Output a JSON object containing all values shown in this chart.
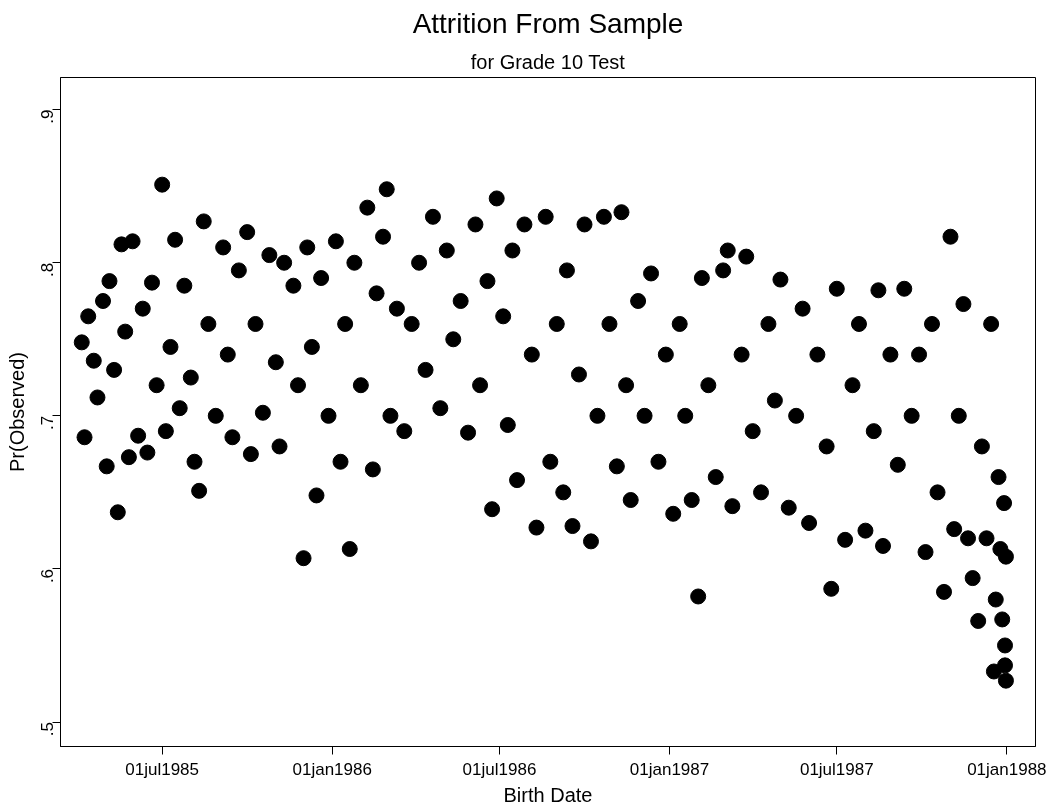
{
  "chart_data": {
    "type": "scatter",
    "title": "Attrition From Sample",
    "subtitle": "for Grade 10 Test",
    "xlabel": "Birth Date",
    "ylabel": "Pr(Observed)",
    "xlim": [
      "1985-03-13",
      "1988-02-01"
    ],
    "ylim": [
      0.484,
      0.921
    ],
    "xticks": [
      {
        "value": "1985-07-01",
        "label": "01jul1985"
      },
      {
        "value": "1986-01-01",
        "label": "01jan1986"
      },
      {
        "value": "1986-07-01",
        "label": "01jul1986"
      },
      {
        "value": "1987-01-01",
        "label": "01jan1987"
      },
      {
        "value": "1987-07-01",
        "label": "01jul1987"
      },
      {
        "value": "1988-01-01",
        "label": "01jan1988"
      }
    ],
    "yticks": [
      {
        "value": 0.5,
        "label": ".5"
      },
      {
        "value": 0.6,
        "label": ".6"
      },
      {
        "value": 0.7,
        "label": ".7"
      },
      {
        "value": 0.8,
        "label": ".8"
      },
      {
        "value": 0.9,
        "label": ".9"
      }
    ],
    "grid": false,
    "marker": "circle",
    "series": [
      {
        "color": "#000000",
        "x": [
          "1985-04-05",
          "1985-04-08",
          "1985-04-12",
          "1985-04-18",
          "1985-04-22",
          "1985-04-28",
          "1985-05-02",
          "1985-05-05",
          "1985-05-10",
          "1985-05-14",
          "1985-05-18",
          "1985-05-22",
          "1985-05-26",
          "1985-05-30",
          "1985-06-05",
          "1985-06-10",
          "1985-06-15",
          "1985-06-20",
          "1985-06-25",
          "1985-07-01",
          "1985-07-05",
          "1985-07-10",
          "1985-07-15",
          "1985-07-20",
          "1985-07-25",
          "1985-08-01",
          "1985-08-05",
          "1985-08-10",
          "1985-08-15",
          "1985-08-20",
          "1985-08-28",
          "1985-09-05",
          "1985-09-10",
          "1985-09-15",
          "1985-09-22",
          "1985-10-01",
          "1985-10-05",
          "1985-10-10",
          "1985-10-18",
          "1985-10-25",
          "1985-11-01",
          "1985-11-05",
          "1985-11-10",
          "1985-11-20",
          "1985-11-25",
          "1985-12-01",
          "1985-12-05",
          "1985-12-10",
          "1985-12-15",
          "1985-12-20",
          "1985-12-28",
          "1986-01-05",
          "1986-01-10",
          "1986-01-15",
          "1986-01-20",
          "1986-01-25",
          "1986-02-01",
          "1986-02-08",
          "1986-02-14",
          "1986-02-18",
          "1986-02-25",
          "1986-03-01",
          "1986-03-05",
          "1986-03-12",
          "1986-03-20",
          "1986-03-28",
          "1986-04-05",
          "1986-04-12",
          "1986-04-20",
          "1986-04-28",
          "1986-05-05",
          "1986-05-12",
          "1986-05-20",
          "1986-05-28",
          "1986-06-05",
          "1986-06-10",
          "1986-06-18",
          "1986-06-23",
          "1986-06-28",
          "1986-07-05",
          "1986-07-10",
          "1986-07-15",
          "1986-07-20",
          "1986-07-28",
          "1986-08-05",
          "1986-08-10",
          "1986-08-20",
          "1986-08-25",
          "1986-09-01",
          "1986-09-08",
          "1986-09-12",
          "1986-09-18",
          "1986-09-25",
          "1986-10-01",
          "1986-10-08",
          "1986-10-15",
          "1986-10-22",
          "1986-10-28",
          "1986-11-05",
          "1986-11-10",
          "1986-11-15",
          "1986-11-20",
          "1986-11-28",
          "1986-12-05",
          "1986-12-12",
          "1986-12-20",
          "1986-12-28",
          "1987-01-05",
          "1987-01-12",
          "1987-01-18",
          "1987-01-25",
          "1987-02-01",
          "1987-02-05",
          "1987-02-12",
          "1987-02-20",
          "1987-02-28",
          "1987-03-05",
          "1987-03-10",
          "1987-03-20",
          "1987-03-25",
          "1987-04-01",
          "1987-04-10",
          "1987-04-18",
          "1987-04-25",
          "1987-05-01",
          "1987-05-10",
          "1987-05-18",
          "1987-05-25",
          "1987-06-01",
          "1987-06-10",
          "1987-06-20",
          "1987-06-25",
          "1987-07-01",
          "1987-07-10",
          "1987-07-18",
          "1987-07-25",
          "1987-08-01",
          "1987-08-10",
          "1987-08-15",
          "1987-08-20",
          "1987-08-28",
          "1987-09-05",
          "1987-09-12",
          "1987-09-20",
          "1987-09-28",
          "1987-10-05",
          "1987-10-12",
          "1987-10-18",
          "1987-10-25",
          "1987-11-01",
          "1987-11-05",
          "1987-11-10",
          "1987-11-15",
          "1987-11-20",
          "1987-11-25",
          "1987-12-01",
          "1987-12-05",
          "1987-12-10",
          "1987-12-15",
          "1987-12-18",
          "1987-12-20",
          "1987-12-23",
          "1987-12-25",
          "1987-12-27",
          "1987-12-29",
          "1987-12-30",
          "1987-12-31",
          "1987-12-31",
          "1987-12-30"
        ],
        "values": [
          0.748,
          0.686,
          0.765,
          0.736,
          0.712,
          0.775,
          0.667,
          0.788,
          0.73,
          0.637,
          0.812,
          0.755,
          0.673,
          0.814,
          0.687,
          0.77,
          0.676,
          0.787,
          0.72,
          0.851,
          0.69,
          0.745,
          0.815,
          0.705,
          0.785,
          0.725,
          0.67,
          0.651,
          0.827,
          0.76,
          0.7,
          0.81,
          0.74,
          0.686,
          0.795,
          0.82,
          0.675,
          0.76,
          0.702,
          0.805,
          0.735,
          0.68,
          0.8,
          0.785,
          0.72,
          0.607,
          0.81,
          0.745,
          0.648,
          0.79,
          0.7,
          0.814,
          0.67,
          0.76,
          0.613,
          0.8,
          0.72,
          0.836,
          0.665,
          0.78,
          0.817,
          0.848,
          0.7,
          0.77,
          0.69,
          0.76,
          0.8,
          0.73,
          0.83,
          0.705,
          0.808,
          0.75,
          0.775,
          0.689,
          0.825,
          0.72,
          0.788,
          0.639,
          0.842,
          0.765,
          0.694,
          0.808,
          0.658,
          0.825,
          0.74,
          0.627,
          0.83,
          0.67,
          0.76,
          0.65,
          0.795,
          0.628,
          0.727,
          0.825,
          0.618,
          0.7,
          0.83,
          0.76,
          0.667,
          0.833,
          0.72,
          0.645,
          0.775,
          0.7,
          0.793,
          0.67,
          0.74,
          0.636,
          0.76,
          0.7,
          0.645,
          0.582,
          0.79,
          0.72,
          0.66,
          0.795,
          0.808,
          0.641,
          0.74,
          0.804,
          0.69,
          0.65,
          0.76,
          0.71,
          0.789,
          0.64,
          0.7,
          0.77,
          0.63,
          0.74,
          0.68,
          0.587,
          0.783,
          0.619,
          0.72,
          0.76,
          0.625,
          0.69,
          0.782,
          0.615,
          0.74,
          0.668,
          0.783,
          0.7,
          0.74,
          0.611,
          0.76,
          0.65,
          0.585,
          0.817,
          0.626,
          0.7,
          0.773,
          0.62,
          0.594,
          0.566,
          0.68,
          0.62,
          0.76,
          0.533,
          0.58,
          0.66,
          0.613,
          0.567,
          0.643,
          0.55,
          0.527,
          0.608,
          0.537
        ]
      }
    ]
  }
}
